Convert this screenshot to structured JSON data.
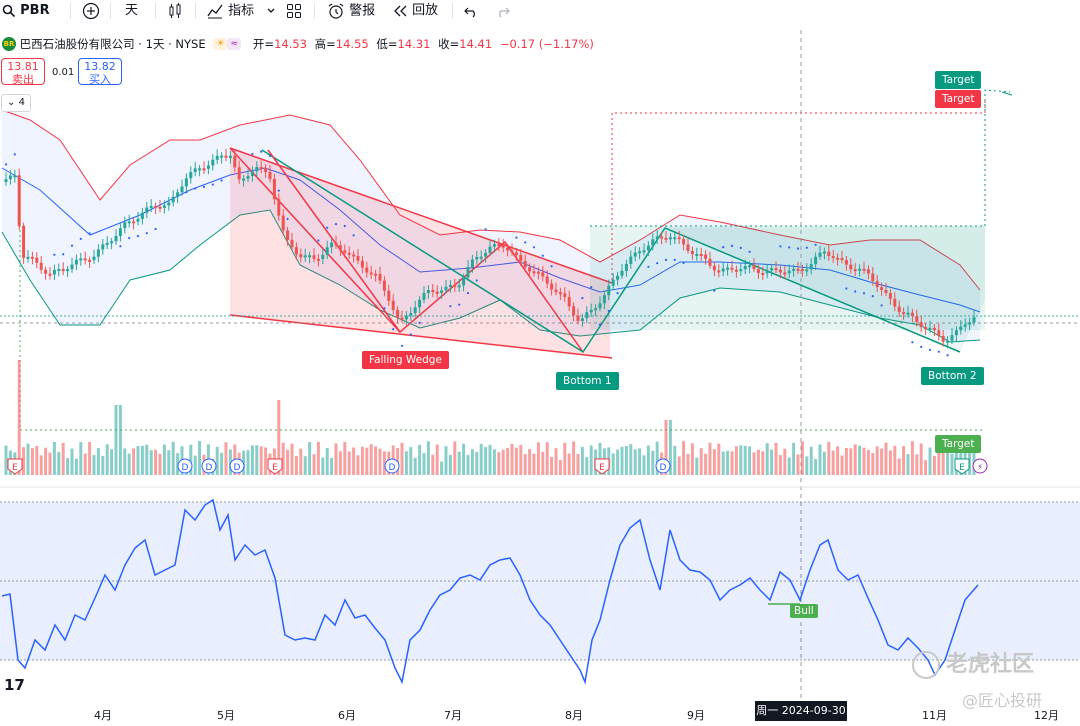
{
  "toolbar": {
    "symbol": "PBR",
    "interval": "天",
    "indicators_label": "指标",
    "alert_label": "警报",
    "replay_label": "回放"
  },
  "legend": {
    "name": "巴西石油股份有限公司 · 1天 · NYSE",
    "open_label": "开=",
    "open": "14.53",
    "high_label": "高=",
    "high": "14.55",
    "low_label": "低=",
    "low": "14.31",
    "close_label": "收=",
    "close": "14.41",
    "change": "−0.17 (−1.17%)",
    "badge": "BR"
  },
  "trade": {
    "sell_price": "13.81",
    "sell_label": "卖出",
    "spread": "0.01",
    "buy_price": "13.82",
    "buy_label": "买入"
  },
  "collapse_label": "4",
  "annotations": {
    "falling_wedge": "Falling Wedge",
    "bottom1": "Bottom 1",
    "bottom2": "Bottom 2",
    "target_red": "Target",
    "target_green": "Target",
    "target_volume": "Target",
    "bull": "Bull"
  },
  "markers": {
    "earnings": "E",
    "dividend": "D"
  },
  "x_axis": [
    "4月",
    "5月",
    "6月",
    "7月",
    "8月",
    "9月",
    "11月",
    "12月"
  ],
  "crosshair_date": "周一 2024-09-30",
  "watermark": {
    "main": "老虎社区",
    "sub": "@匠心投研"
  },
  "colors": {
    "up": "#26a69a",
    "down": "#ef5350",
    "accent": "#2962ff",
    "target_red": "#f23645",
    "target_green": "#089981"
  }
}
